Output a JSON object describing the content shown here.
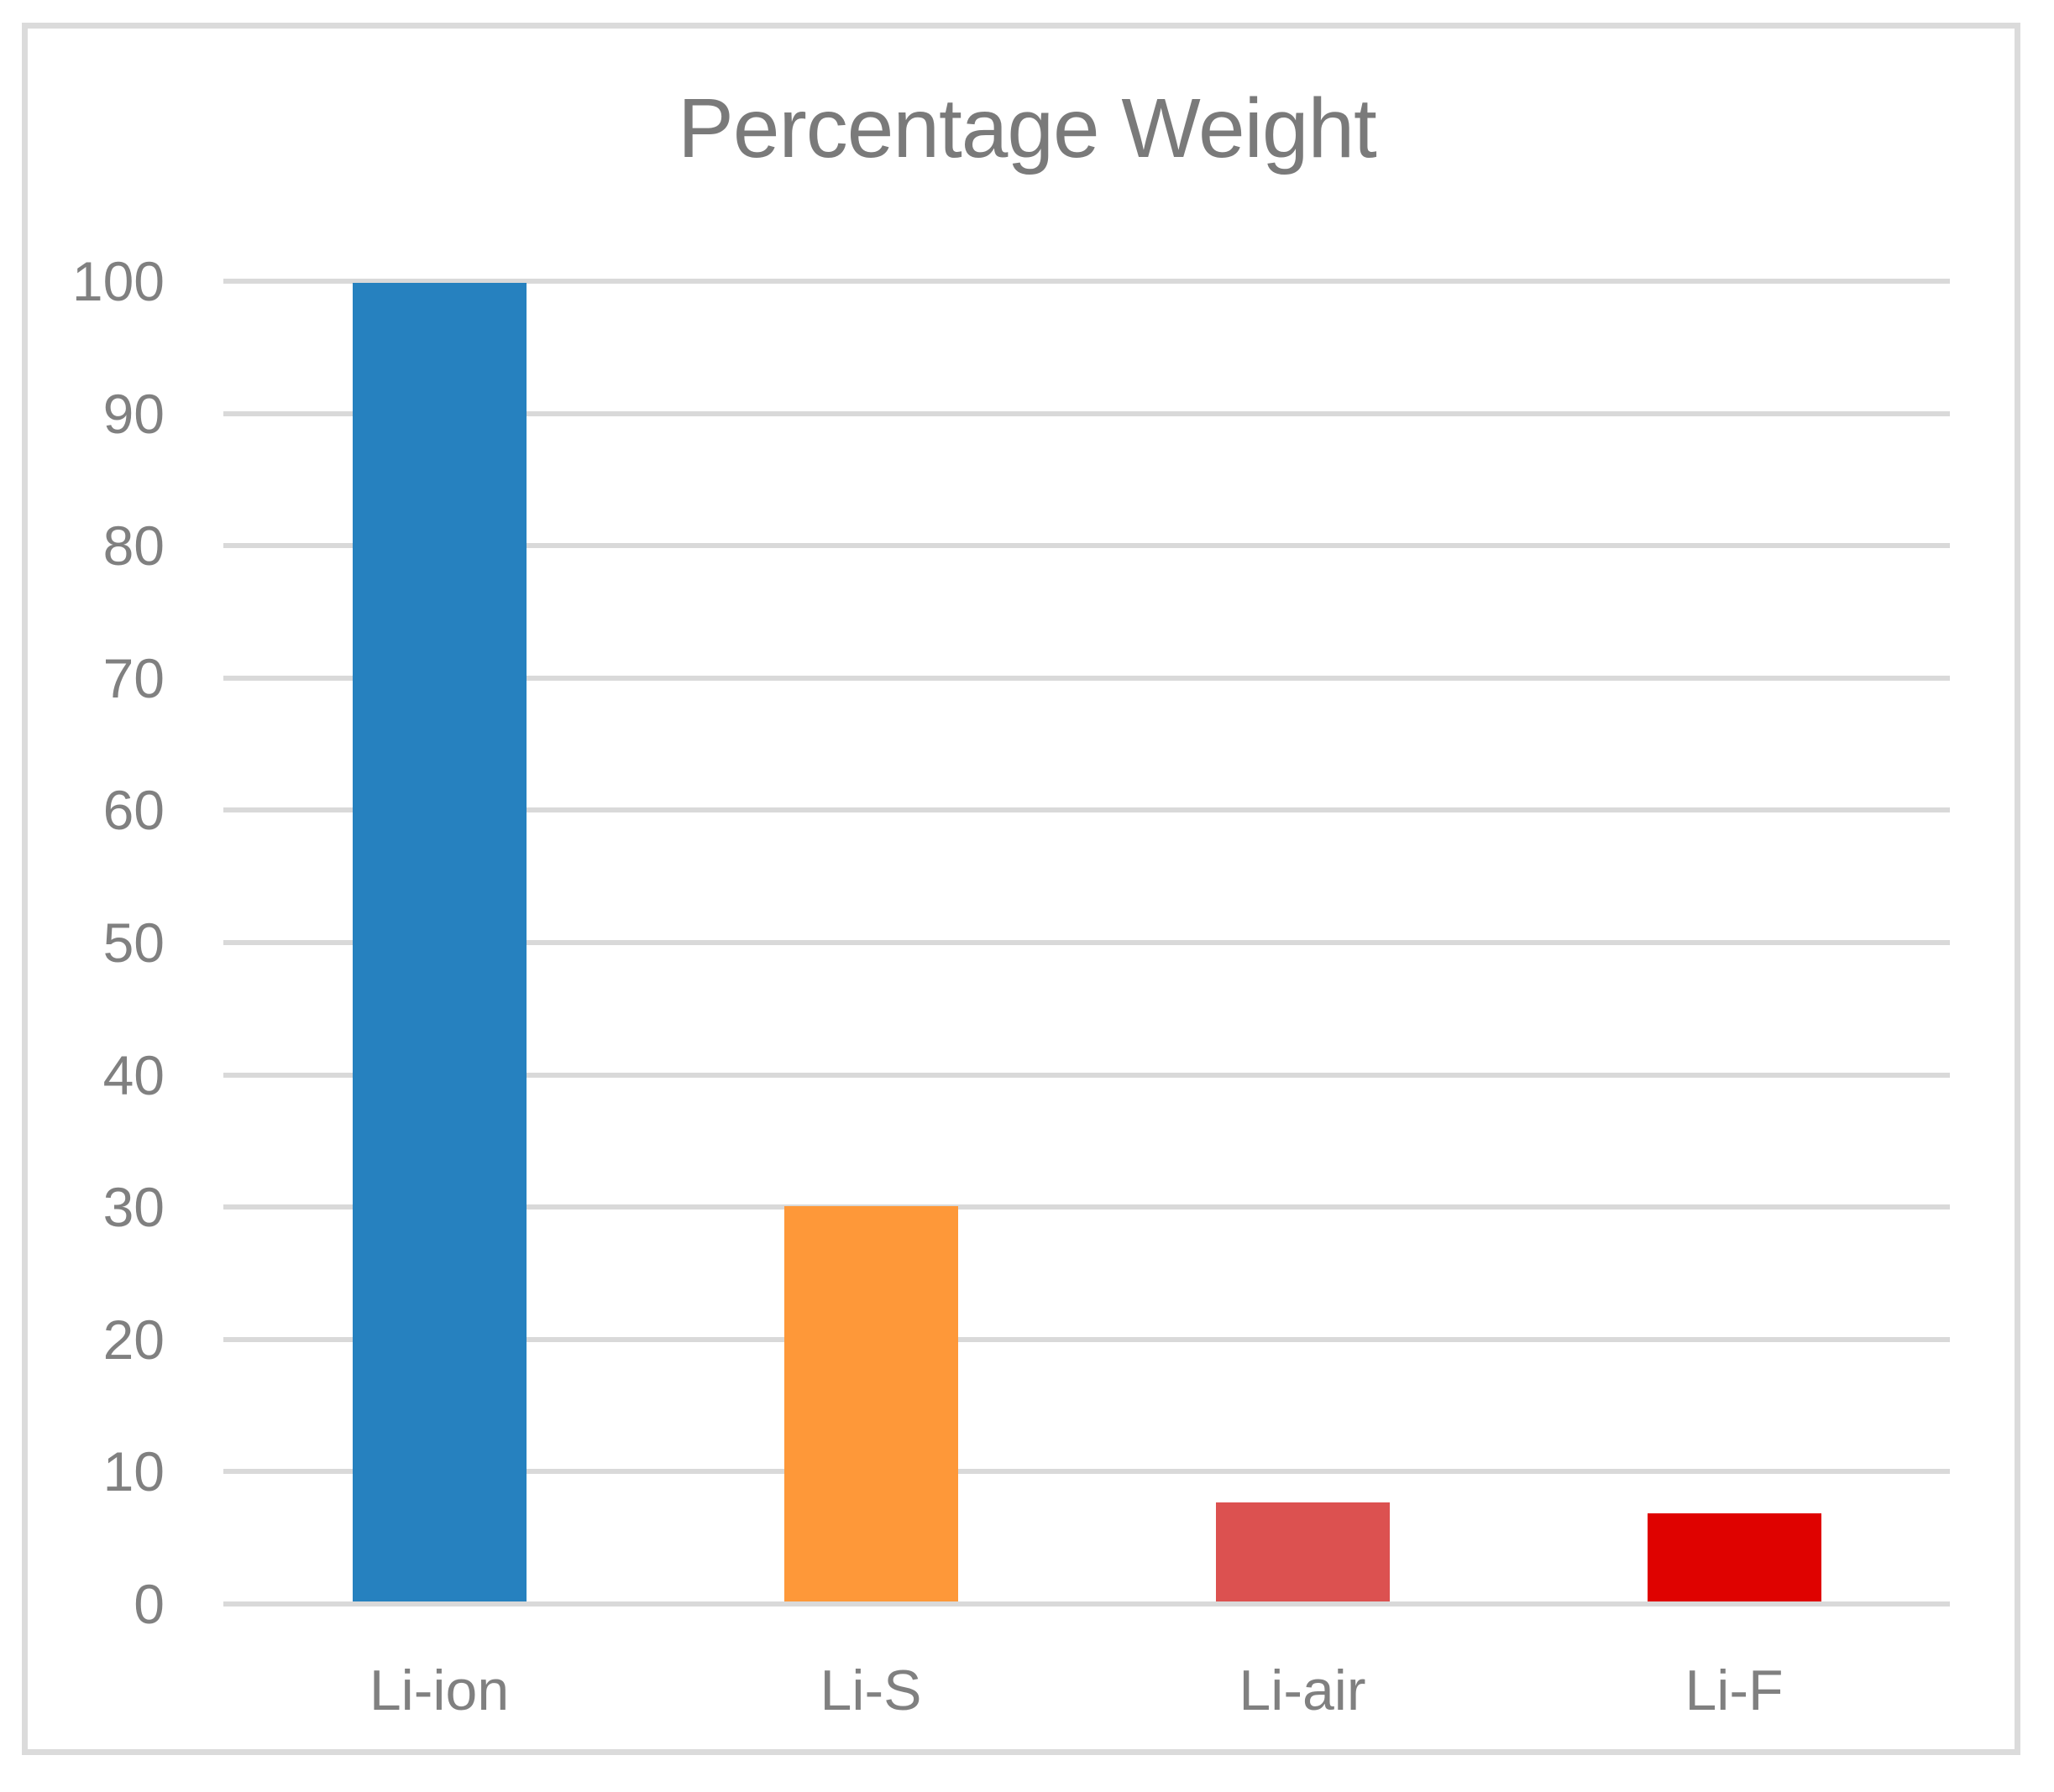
{
  "chart_data": {
    "type": "bar",
    "title": "Percentage Weight",
    "categories": [
      "Li-ion",
      "Li-S",
      "Li-air",
      "Li-F"
    ],
    "values": [
      100,
      30,
      7.5,
      6.7
    ],
    "bar_colors": [
      "#2681BF",
      "#FE9839",
      "#DC5150",
      "#DF0200"
    ],
    "xlabel": "",
    "ylabel": "",
    "ylim": [
      0,
      100
    ],
    "yticks": [
      0,
      10,
      20,
      30,
      40,
      50,
      60,
      70,
      80,
      90,
      100
    ],
    "grid": true,
    "legend_position": "none",
    "text_color": "#808080",
    "title_color": "#7a7a7a",
    "gridline_color": "#d9d9d9",
    "frame_color": "#dbdbdb",
    "background_color": "#ffffff"
  }
}
